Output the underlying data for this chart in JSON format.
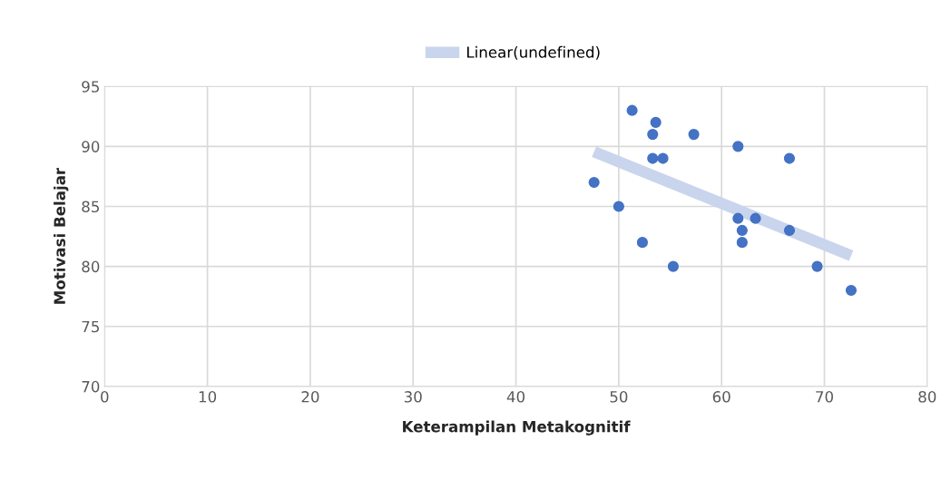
{
  "chart_data": {
    "type": "scatter",
    "xlabel": "Keterampilan Metakognitif",
    "ylabel": "Motivasi Belajar",
    "xlim": [
      0,
      80
    ],
    "xticks": [
      0,
      10,
      20,
      30,
      40,
      50,
      60,
      70,
      80
    ],
    "ylim": [
      70,
      95
    ],
    "yticks": [
      70,
      75,
      80,
      85,
      90,
      95
    ],
    "grid": true,
    "legend": "top",
    "series": [
      {
        "marker": "circle",
        "color": "#4472c4",
        "x": [
          51.3,
          53.6,
          53.3,
          57.3,
          61.6,
          53.3,
          54.3,
          66.6,
          47.6,
          50.0,
          52.3,
          55.3,
          61.6,
          63.3,
          62.0,
          62.0,
          66.6,
          69.3,
          72.6
        ],
        "values": [
          93,
          92,
          91,
          91,
          90,
          89,
          89,
          89,
          87,
          85,
          82,
          80,
          84,
          84,
          83,
          82,
          83,
          80,
          78
        ]
      },
      {
        "type": "line",
        "name": "Linear(undefined)",
        "color": "#c9d5ec",
        "x": [
          47.6,
          72.6
        ],
        "values": [
          89.55,
          80.9
        ]
      }
    ]
  }
}
